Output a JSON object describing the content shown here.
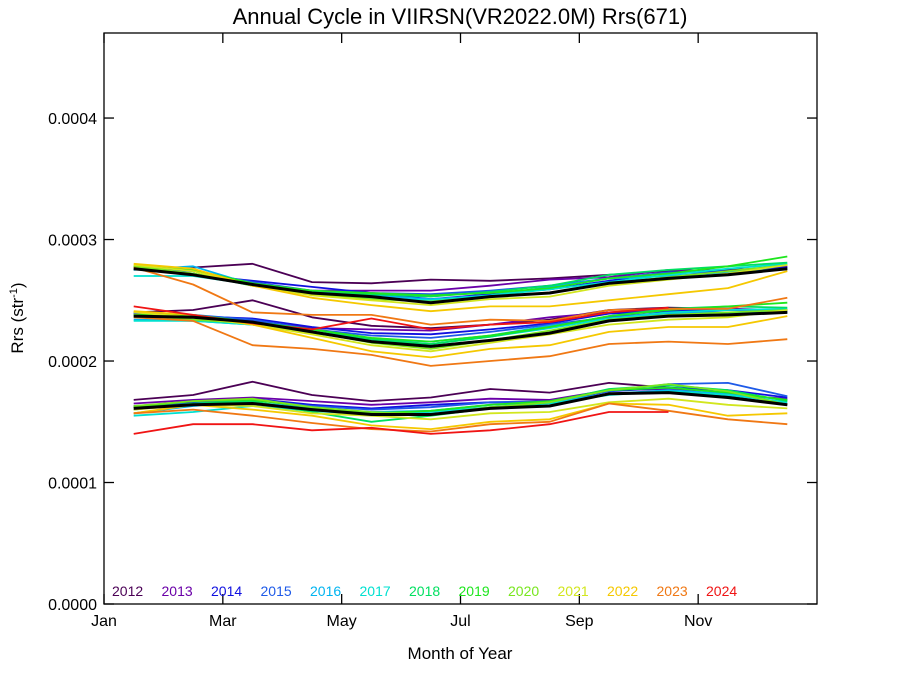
{
  "chart_data": {
    "type": "line",
    "title": "Annual Cycle in VIIRSN(VR2022.0M) Rrs(671)",
    "xlabel": "Month of Year",
    "ylabel_main": "Rrs (str",
    "ylabel_sup": "-1",
    "ylabel_end": ")",
    "xlim": [
      1,
      13
    ],
    "ylim": [
      0,
      0.00047
    ],
    "x_ticks": [
      {
        "value": 1,
        "label": "Jan"
      },
      {
        "value": 3,
        "label": "Mar"
      },
      {
        "value": 5,
        "label": "May"
      },
      {
        "value": 7,
        "label": "Jul"
      },
      {
        "value": 9,
        "label": "Sep"
      },
      {
        "value": 11,
        "label": "Nov"
      }
    ],
    "y_ticks": [
      {
        "value": 0,
        "label": "0.0000"
      },
      {
        "value": 0.0001,
        "label": "0.0001"
      },
      {
        "value": 0.0002,
        "label": "0.0002"
      },
      {
        "value": 0.0003,
        "label": "0.0003"
      },
      {
        "value": 0.0004,
        "label": "0.0004"
      }
    ],
    "grid": false,
    "legend_position": "bottom-inside",
    "months": [
      1.5,
      2.5,
      3.5,
      4.5,
      5.5,
      6.5,
      7.5,
      8.5,
      9.5,
      10.5,
      11.5,
      12.5
    ],
    "series": [
      {
        "name": "2012",
        "color": "#4b0055",
        "upper": [
          0.000277,
          0.000277,
          0.00028,
          0.000265,
          0.000264,
          0.000267,
          0.000266,
          0.000268,
          0.000271,
          0.000274,
          0.000275,
          0.000277
        ],
        "middle": [
          0.00024,
          0.000242,
          0.00025,
          0.000236,
          0.000229,
          0.000227,
          0.00023,
          0.000234,
          0.000242,
          0.000244,
          0.000243,
          0.000241
        ],
        "lower": [
          0.000168,
          0.000172,
          0.000183,
          0.000172,
          0.000167,
          0.00017,
          0.000177,
          0.000174,
          0.000182,
          0.000178,
          0.000171,
          0.000164
        ]
      },
      {
        "name": "2013",
        "color": "#6a00a8",
        "upper": [
          0.000276,
          0.000272,
          0.000263,
          0.000258,
          0.000258,
          0.000258,
          0.000262,
          0.000267,
          0.000269,
          0.000275,
          0.000274,
          0.000278
        ],
        "middle": [
          0.000238,
          0.000236,
          0.000233,
          0.000227,
          0.000226,
          0.000225,
          0.00023,
          0.000236,
          0.00024,
          0.000242,
          0.000243,
          0.000242
        ],
        "lower": [
          0.000165,
          0.000168,
          0.00017,
          0.000167,
          0.000164,
          0.000166,
          0.000169,
          0.000168,
          0.000176,
          0.000177,
          0.000172,
          0.000169
        ]
      },
      {
        "name": "2014",
        "color": "#1010e0",
        "upper": [
          0.000276,
          0.000271,
          0.000266,
          0.000261,
          0.000256,
          0.000251,
          0.000255,
          0.000259,
          0.000266,
          0.000273,
          0.000274,
          0.000277
        ],
        "middle": [
          0.000239,
          0.000237,
          0.000235,
          0.000228,
          0.000223,
          0.000222,
          0.000226,
          0.000231,
          0.000239,
          0.000241,
          0.000242,
          0.000242
        ],
        "lower": [
          0.000163,
          0.000166,
          0.000169,
          0.000164,
          0.000161,
          0.000164,
          0.000166,
          0.000166,
          0.000175,
          0.000178,
          0.000176,
          0.00017
        ]
      },
      {
        "name": "2015",
        "color": "#1e5ae8",
        "upper": [
          0.000276,
          0.000274,
          0.000265,
          0.000258,
          0.000256,
          0.000255,
          0.000258,
          0.000262,
          0.000268,
          0.000273,
          0.000272,
          0.000276
        ],
        "middle": [
          0.000239,
          0.000238,
          0.000234,
          0.000226,
          0.000221,
          0.000219,
          0.000224,
          0.00023,
          0.000236,
          0.00024,
          0.00024,
          0.00024
        ],
        "lower": [
          0.000162,
          0.000165,
          0.000168,
          0.000163,
          0.00016,
          0.000162,
          0.000166,
          0.000167,
          0.000175,
          0.000181,
          0.000182,
          0.000171
        ]
      },
      {
        "name": "2016",
        "color": "#00b4f0",
        "upper": [
          0.000275,
          0.000278,
          0.000263,
          0.000257,
          0.000254,
          0.000251,
          0.000254,
          0.000261,
          0.000268,
          0.00027,
          0.000273,
          0.000276
        ],
        "middle": [
          0.000234,
          0.000233,
          0.00023,
          0.000224,
          0.000218,
          0.000216,
          0.000221,
          0.000229,
          0.000235,
          0.000239,
          0.00024,
          0.00024
        ],
        "lower": [
          0.000157,
          0.000163,
          0.000166,
          0.000161,
          0.000158,
          0.000159,
          0.000164,
          0.000166,
          0.000173,
          0.000176,
          0.000173,
          0.000168
        ]
      },
      {
        "name": "2017",
        "color": "#00e0d0",
        "upper": [
          0.00027,
          0.00027,
          0.000263,
          0.000256,
          0.000252,
          0.00025,
          0.000254,
          0.000259,
          0.000265,
          0.000271,
          0.000276,
          0.00028
        ],
        "middle": [
          0.000233,
          0.000233,
          0.00023,
          0.000223,
          0.000217,
          0.000214,
          0.00022,
          0.000227,
          0.000235,
          0.00024,
          0.000242,
          0.000243
        ],
        "lower": [
          0.000155,
          0.000158,
          0.000163,
          0.000159,
          0.000156,
          0.000158,
          0.000162,
          0.000165,
          0.000172,
          0.000175,
          0.000172,
          0.000166
        ]
      },
      {
        "name": "2018",
        "color": "#00e060",
        "upper": [
          0.000277,
          0.000272,
          0.000262,
          0.000256,
          0.000255,
          0.000253,
          0.000257,
          0.000262,
          0.000271,
          0.000275,
          0.000278,
          0.000281
        ],
        "middle": [
          0.000237,
          0.000236,
          0.000232,
          0.000226,
          0.000218,
          0.000214,
          0.00022,
          0.000228,
          0.000237,
          0.000243,
          0.000245,
          0.000244
        ],
        "lower": [
          0.00016,
          0.000165,
          0.000167,
          0.000158,
          0.00015,
          0.000155,
          0.000161,
          0.000166,
          0.000177,
          0.00018,
          0.000176,
          0.000167
        ]
      },
      {
        "name": "2019",
        "color": "#1ee61e",
        "upper": [
          0.000278,
          0.000275,
          0.000264,
          0.000258,
          0.000256,
          0.000254,
          0.000256,
          0.00026,
          0.000268,
          0.000272,
          0.000278,
          0.000286
        ],
        "middle": [
          0.000238,
          0.000238,
          0.000232,
          0.000226,
          0.000219,
          0.000216,
          0.000221,
          0.000228,
          0.000237,
          0.000242,
          0.000245,
          0.000248
        ],
        "lower": [
          0.000162,
          0.000167,
          0.000168,
          0.000162,
          0.000157,
          0.000159,
          0.000164,
          0.000167,
          0.000176,
          0.000178,
          0.000174,
          0.000168
        ]
      },
      {
        "name": "2020",
        "color": "#78e61e",
        "upper": [
          0.000278,
          0.000272,
          0.000263,
          0.000255,
          0.000251,
          0.000249,
          0.000253,
          0.000256,
          0.000264,
          0.000269,
          0.000274,
          0.000279
        ],
        "middle": [
          0.000238,
          0.000234,
          0.000231,
          0.000224,
          0.000215,
          0.00021,
          0.000217,
          0.000225,
          0.000234,
          0.000238,
          0.00024,
          0.000242
        ],
        "lower": [
          0.000163,
          0.000167,
          0.000169,
          0.000162,
          0.000158,
          0.000156,
          0.000162,
          0.000166,
          0.000176,
          0.000181,
          0.000175,
          0.000164
        ]
      },
      {
        "name": "2021",
        "color": "#d2e61e",
        "upper": [
          0.000279,
          0.000274,
          0.000262,
          0.000254,
          0.00025,
          0.000246,
          0.000251,
          0.000253,
          0.000262,
          0.000267,
          0.000272,
          0.000279
        ],
        "middle": [
          0.00024,
          0.000236,
          0.00023,
          0.000222,
          0.000213,
          0.000208,
          0.000215,
          0.000222,
          0.00023,
          0.000234,
          0.000236,
          0.000242
        ],
        "lower": [
          0.00016,
          0.000164,
          0.000163,
          0.000157,
          0.000155,
          0.000152,
          0.000157,
          0.000158,
          0.000166,
          0.000169,
          0.000164,
          0.000161
        ]
      },
      {
        "name": "2022",
        "color": "#f5c800",
        "upper": [
          0.00028,
          0.000276,
          0.000262,
          0.000252,
          0.000246,
          0.000241,
          0.000245,
          0.000245,
          0.00025,
          0.000255,
          0.00026,
          0.000274
        ],
        "middle": [
          0.000241,
          0.000238,
          0.00023,
          0.000219,
          0.000208,
          0.000203,
          0.00021,
          0.000213,
          0.000224,
          0.000228,
          0.000228,
          0.000237
        ],
        "lower": [
          0.000157,
          0.000164,
          0.00016,
          0.000155,
          0.000147,
          0.000144,
          0.00015,
          0.000152,
          0.000165,
          0.000164,
          0.000155,
          0.000157
        ]
      },
      {
        "name": "2023",
        "color": "#f07814",
        "upper": [
          0.000277,
          0.000263,
          0.00024,
          0.000238,
          0.000238,
          0.00023,
          0.000234,
          0.000233,
          0.000242,
          0.000243,
          0.000243,
          0.000252
        ],
        "middle": [
          0.000236,
          0.000233,
          0.000213,
          0.00021,
          0.000205,
          0.000196,
          0.0002,
          0.000204,
          0.000214,
          0.000216,
          0.000214,
          0.000218
        ],
        "lower": [
          0.000157,
          0.00016,
          0.000155,
          0.000149,
          0.000144,
          0.000142,
          0.000148,
          0.00015,
          0.000165,
          0.000159,
          0.000152,
          0.000148
        ]
      },
      {
        "name": "2024",
        "color": "#f01414",
        "upper": [
          null,
          null,
          null,
          null,
          null,
          null,
          null,
          null,
          null,
          null,
          null,
          null
        ],
        "middle": [
          0.000245,
          0.000238,
          0.000231,
          0.000226,
          0.000235,
          0.000226,
          0.00023,
          0.000232,
          0.00024,
          0.000244,
          null,
          null
        ],
        "lower": [
          0.00014,
          0.000148,
          0.000148,
          0.000143,
          0.000145,
          0.00014,
          0.000143,
          0.000148,
          0.000158,
          0.000158,
          null,
          null
        ]
      },
      {
        "name": "",
        "color": "#000000",
        "upper": [
          0.000276,
          0.000271,
          0.000263,
          0.000256,
          0.000253,
          0.000248,
          0.000253,
          0.000256,
          0.000264,
          0.000268,
          0.000271,
          0.000276
        ],
        "middle": [
          0.000237,
          0.000236,
          0.000232,
          0.000224,
          0.000216,
          0.000212,
          0.000217,
          0.000223,
          0.000233,
          0.000237,
          0.000238,
          0.00024
        ],
        "lower": [
          0.000161,
          0.000164,
          0.000165,
          0.00016,
          0.000156,
          0.000156,
          0.000161,
          0.000163,
          0.000173,
          0.000174,
          0.00017,
          0.000164
        ]
      }
    ]
  }
}
